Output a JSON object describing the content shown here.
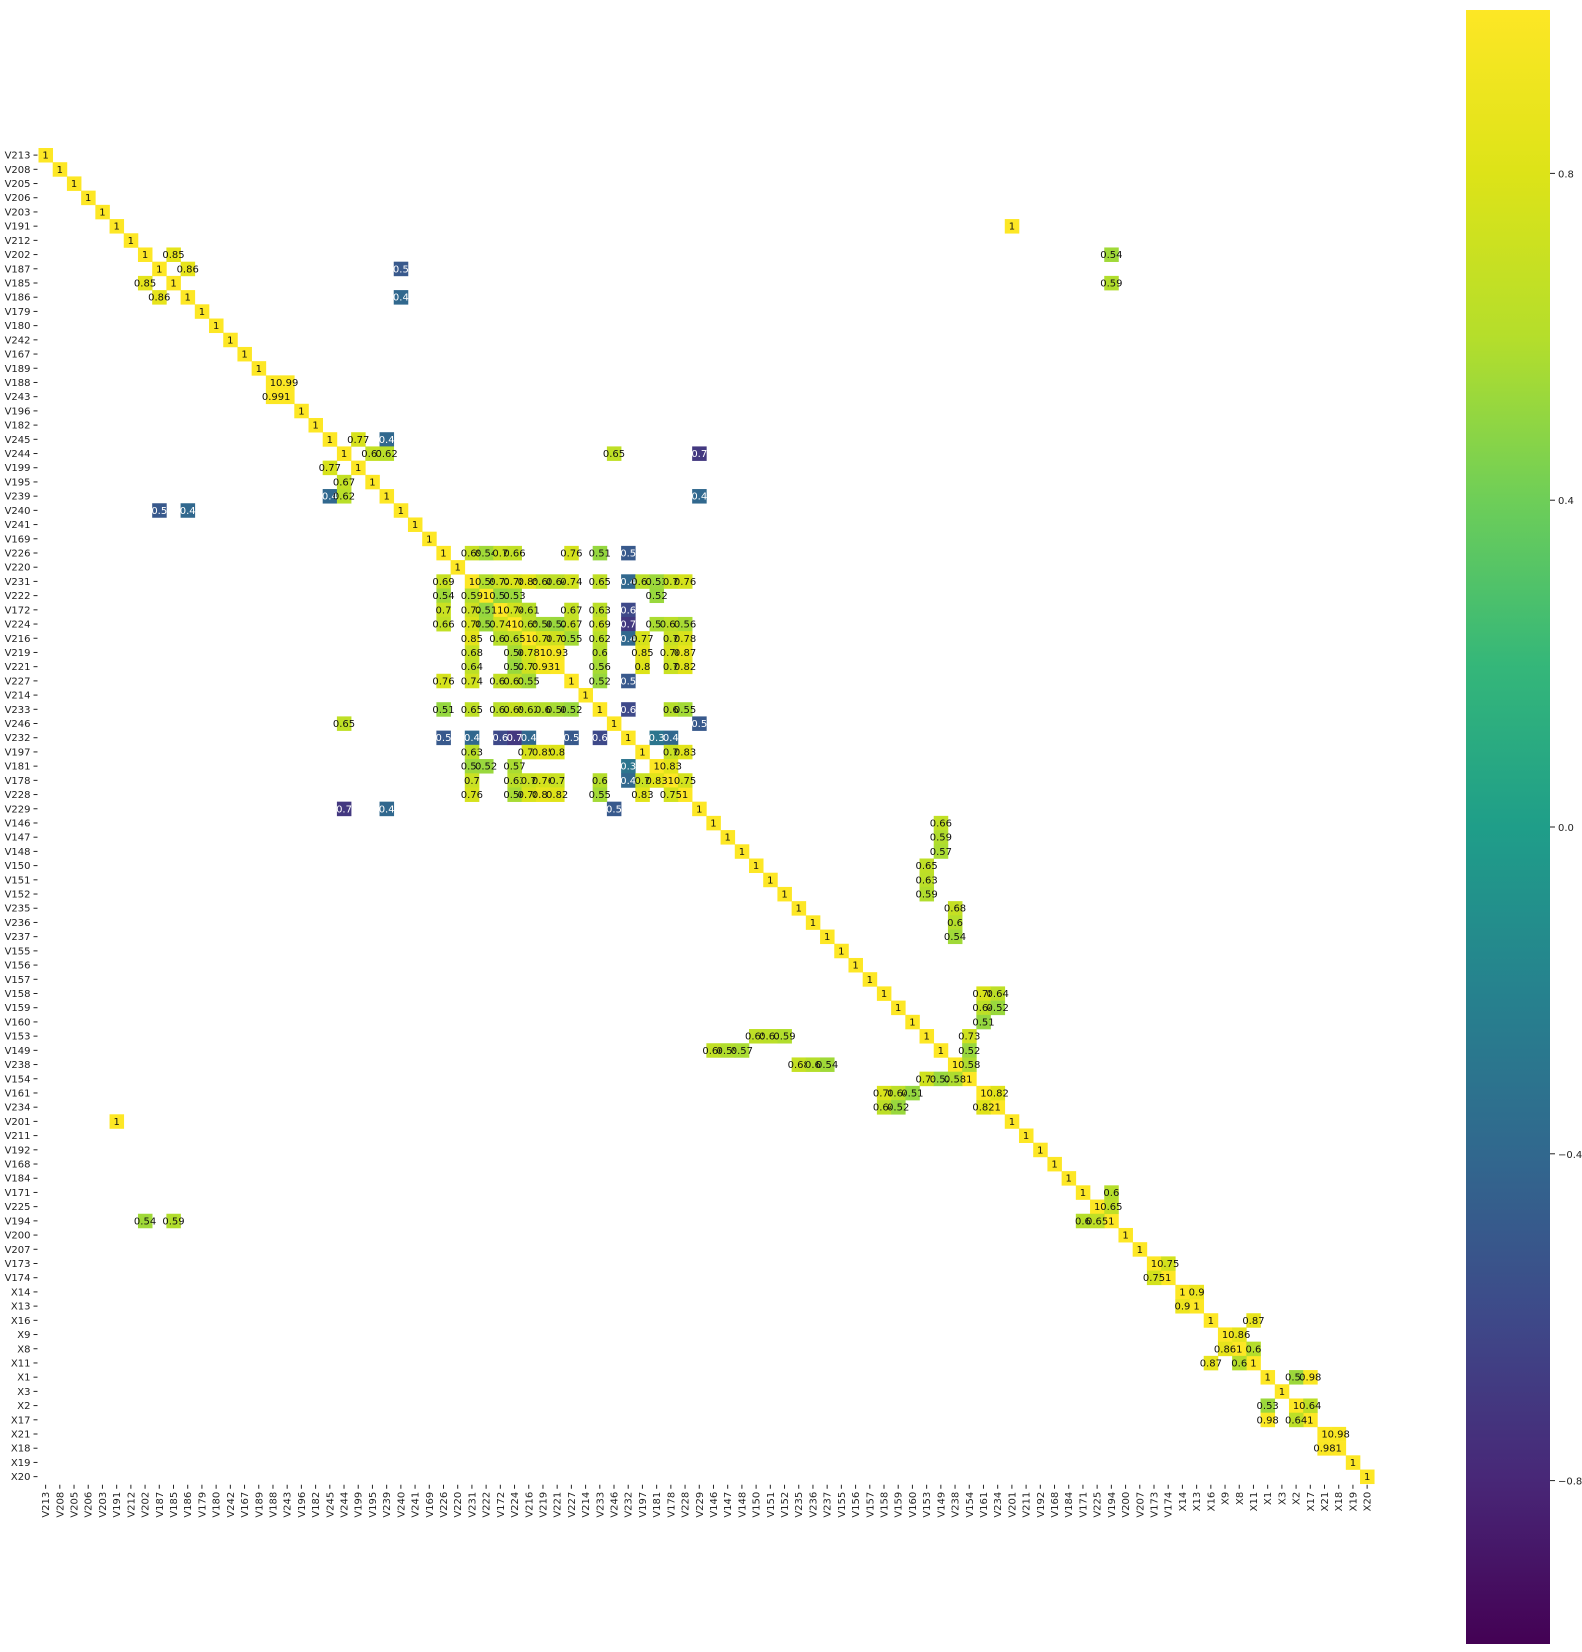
{
  "chart_data": {
    "type": "heatmap",
    "title": "",
    "xlabel": "",
    "ylabel": "",
    "colormap": "viridis",
    "vmin": -1,
    "vmax": 1,
    "labels": [
      "V213",
      "V208",
      "V205",
      "V206",
      "V203",
      "V191",
      "V212",
      "V202",
      "V187",
      "V185",
      "V186",
      "V179",
      "V180",
      "V242",
      "V167",
      "V189",
      "V188",
      "V243",
      "V196",
      "V182",
      "V245",
      "V244",
      "V199",
      "V195",
      "V239",
      "V240",
      "V241",
      "V169",
      "V226",
      "V220",
      "V231",
      "V222",
      "V172",
      "V224",
      "V216",
      "V219",
      "V221",
      "V227",
      "V214",
      "V233",
      "V246",
      "V232",
      "V197",
      "V181",
      "V178",
      "V228",
      "V229",
      "V146",
      "V147",
      "V148",
      "V150",
      "V151",
      "V152",
      "V235",
      "V236",
      "V237",
      "V155",
      "V156",
      "V157",
      "V158",
      "V159",
      "V160",
      "V153",
      "V149",
      "V238",
      "V154",
      "V161",
      "V234",
      "V201",
      "V211",
      "V192",
      "V168",
      "V184",
      "V171",
      "V225",
      "V194",
      "V200",
      "V207",
      "V173",
      "V174",
      "X14",
      "X13",
      "X16",
      "X9",
      "X8",
      "X11",
      "X1",
      "X3",
      "X2",
      "X17",
      "X21",
      "X18",
      "X19",
      "X20"
    ],
    "colorbar_ticks": [
      -0.8,
      -0.4,
      0.0,
      0.4,
      0.8
    ],
    "colorbar_tick_labels": [
      "−0.8",
      "−0.4",
      "0.0",
      "0.4",
      "0.8"
    ],
    "cells": [
      [
        "V202",
        "V185",
        0.85,
        "0.85"
      ],
      [
        "V187",
        "V186",
        0.86,
        "0.86"
      ],
      [
        "V187",
        "V240",
        -0.5,
        "0.5"
      ],
      [
        "V186",
        "V240",
        -0.4,
        "0.4"
      ],
      [
        "V191",
        "V201",
        1,
        "1"
      ],
      [
        "V202",
        "V194",
        0.54,
        "0.54"
      ],
      [
        "V185",
        "V194",
        0.59,
        "0.59"
      ],
      [
        "V188",
        "V243",
        0.99,
        "0.99"
      ],
      [
        "V245",
        "V199",
        0.77,
        "0.77"
      ],
      [
        "V245",
        "V239",
        -0.4,
        "0.4"
      ],
      [
        "V244",
        "V195",
        0.67,
        "0.67"
      ],
      [
        "V244",
        "V239",
        0.62,
        "0.62"
      ],
      [
        "V244",
        "V246",
        0.65,
        "0.65"
      ],
      [
        "V244",
        "V229",
        -0.7,
        "0.7"
      ],
      [
        "V239",
        "V229",
        -0.4,
        "0.4"
      ],
      [
        "V226",
        "V231",
        0.69,
        "0.69"
      ],
      [
        "V226",
        "V222",
        0.54,
        "0.54"
      ],
      [
        "V226",
        "V172",
        0.7,
        "0.7"
      ],
      [
        "V226",
        "V224",
        0.66,
        "0.66"
      ],
      [
        "V226",
        "V227",
        0.76,
        "0.76"
      ],
      [
        "V226",
        "V233",
        0.51,
        "0.51"
      ],
      [
        "V226",
        "V232",
        -0.5,
        "0.5"
      ],
      [
        "V231",
        "V222",
        0.59,
        "0.59"
      ],
      [
        "V231",
        "V172",
        0.72,
        "0.72"
      ],
      [
        "V231",
        "V224",
        0.78,
        "0.78"
      ],
      [
        "V231",
        "V216",
        0.85,
        "0.85"
      ],
      [
        "V231",
        "V219",
        0.68,
        "0.68"
      ],
      [
        "V231",
        "V221",
        0.64,
        "0.64"
      ],
      [
        "V231",
        "V227",
        0.74,
        "0.74"
      ],
      [
        "V231",
        "V233",
        0.65,
        "0.65"
      ],
      [
        "V231",
        "V232",
        -0.4,
        "0.4"
      ],
      [
        "V231",
        "V197",
        0.63,
        "0.63"
      ],
      [
        "V231",
        "V181",
        0.53,
        "0.53"
      ],
      [
        "V231",
        "V178",
        0.7,
        "0.7"
      ],
      [
        "V231",
        "V228",
        0.76,
        "0.76"
      ],
      [
        "V222",
        "V172",
        0.51,
        "0.51"
      ],
      [
        "V222",
        "V224",
        0.53,
        "0.53"
      ],
      [
        "V222",
        "V181",
        0.52,
        "0.52"
      ],
      [
        "V172",
        "V224",
        0.74,
        "0.74"
      ],
      [
        "V172",
        "V216",
        0.61,
        "0.61"
      ],
      [
        "V172",
        "V227",
        0.67,
        "0.67"
      ],
      [
        "V172",
        "V233",
        0.63,
        "0.63"
      ],
      [
        "V172",
        "V232",
        -0.6,
        "0.6"
      ],
      [
        "V224",
        "V216",
        0.65,
        "0.65"
      ],
      [
        "V224",
        "V219",
        0.56,
        "0.56"
      ],
      [
        "V224",
        "V221",
        0.52,
        "0.52"
      ],
      [
        "V224",
        "V227",
        0.67,
        "0.67"
      ],
      [
        "V224",
        "V233",
        0.69,
        "0.69"
      ],
      [
        "V224",
        "V232",
        -0.7,
        "0.7"
      ],
      [
        "V224",
        "V181",
        0.57,
        "0.57"
      ],
      [
        "V224",
        "V178",
        0.63,
        "0.63"
      ],
      [
        "V224",
        "V228",
        0.56,
        "0.56"
      ],
      [
        "V216",
        "V219",
        0.78,
        "0.78"
      ],
      [
        "V216",
        "V221",
        0.73,
        "0.73"
      ],
      [
        "V216",
        "V227",
        0.55,
        "0.55"
      ],
      [
        "V216",
        "V233",
        0.62,
        "0.62"
      ],
      [
        "V216",
        "V232",
        -0.4,
        "0.4"
      ],
      [
        "V216",
        "V197",
        0.77,
        "0.77"
      ],
      [
        "V216",
        "V178",
        0.7,
        "0.7"
      ],
      [
        "V216",
        "V228",
        0.78,
        "0.78"
      ],
      [
        "V219",
        "V221",
        0.93,
        "0.93"
      ],
      [
        "V219",
        "V233",
        0.6,
        "0.6"
      ],
      [
        "V219",
        "V197",
        0.85,
        "0.85"
      ],
      [
        "V219",
        "V178",
        0.76,
        "0.76"
      ],
      [
        "V219",
        "V228",
        0.87,
        "0.87"
      ],
      [
        "V221",
        "V233",
        0.56,
        "0.56"
      ],
      [
        "V221",
        "V197",
        0.8,
        "0.8"
      ],
      [
        "V221",
        "V178",
        0.7,
        "0.7"
      ],
      [
        "V221",
        "V228",
        0.82,
        "0.82"
      ],
      [
        "V227",
        "V233",
        0.52,
        "0.52"
      ],
      [
        "V227",
        "V232",
        -0.5,
        "0.5"
      ],
      [
        "V233",
        "V232",
        -0.6,
        "0.6"
      ],
      [
        "V233",
        "V178",
        0.6,
        "0.6"
      ],
      [
        "V233",
        "V228",
        0.55,
        "0.55"
      ],
      [
        "V246",
        "V229",
        -0.5,
        "0.5"
      ],
      [
        "V232",
        "V181",
        -0.3,
        "0.3"
      ],
      [
        "V232",
        "V178",
        -0.4,
        "0.4"
      ],
      [
        "V197",
        "V178",
        0.7,
        "0.7"
      ],
      [
        "V197",
        "V228",
        0.83,
        "0.83"
      ],
      [
        "V181",
        "V178",
        0.83,
        "0.83"
      ],
      [
        "V178",
        "V228",
        0.75,
        "0.75"
      ],
      [
        "V146",
        "V149",
        0.66,
        "0.66"
      ],
      [
        "V147",
        "V149",
        0.59,
        "0.59"
      ],
      [
        "V148",
        "V149",
        0.57,
        "0.57"
      ],
      [
        "V150",
        "V153",
        0.65,
        "0.65"
      ],
      [
        "V151",
        "V153",
        0.63,
        "0.63"
      ],
      [
        "V152",
        "V153",
        0.59,
        "0.59"
      ],
      [
        "V235",
        "V238",
        0.68,
        "0.68"
      ],
      [
        "V236",
        "V238",
        0.6,
        "0.6"
      ],
      [
        "V237",
        "V238",
        0.54,
        "0.54"
      ],
      [
        "V158",
        "V161",
        0.78,
        "0.78"
      ],
      [
        "V158",
        "V234",
        0.64,
        "0.64"
      ],
      [
        "V159",
        "V161",
        0.64,
        "0.64"
      ],
      [
        "V159",
        "V234",
        0.52,
        "0.52"
      ],
      [
        "V160",
        "V161",
        0.51,
        "0.51"
      ],
      [
        "V153",
        "V154",
        0.73,
        "0.73"
      ],
      [
        "V149",
        "V154",
        0.52,
        "0.52"
      ],
      [
        "V238",
        "V154",
        0.58,
        "0.58"
      ],
      [
        "V161",
        "V234",
        0.82,
        "0.82"
      ],
      [
        "V171",
        "V194",
        0.6,
        "0.6"
      ],
      [
        "V225",
        "V194",
        0.65,
        "0.65"
      ],
      [
        "V173",
        "V174",
        0.75,
        "0.75"
      ],
      [
        "X14",
        "X13",
        0.9,
        "0.9"
      ],
      [
        "X16",
        "X11",
        0.87,
        "0.87"
      ],
      [
        "X9",
        "X8",
        0.86,
        "0.86"
      ],
      [
        "X8",
        "X11",
        0.6,
        "0.6"
      ],
      [
        "X1",
        "X2",
        0.53,
        "0.53"
      ],
      [
        "X1",
        "X17",
        0.98,
        "0.98"
      ],
      [
        "X2",
        "X17",
        0.64,
        "0.64"
      ],
      [
        "X21",
        "X18",
        0.98,
        "0.98"
      ]
    ]
  }
}
